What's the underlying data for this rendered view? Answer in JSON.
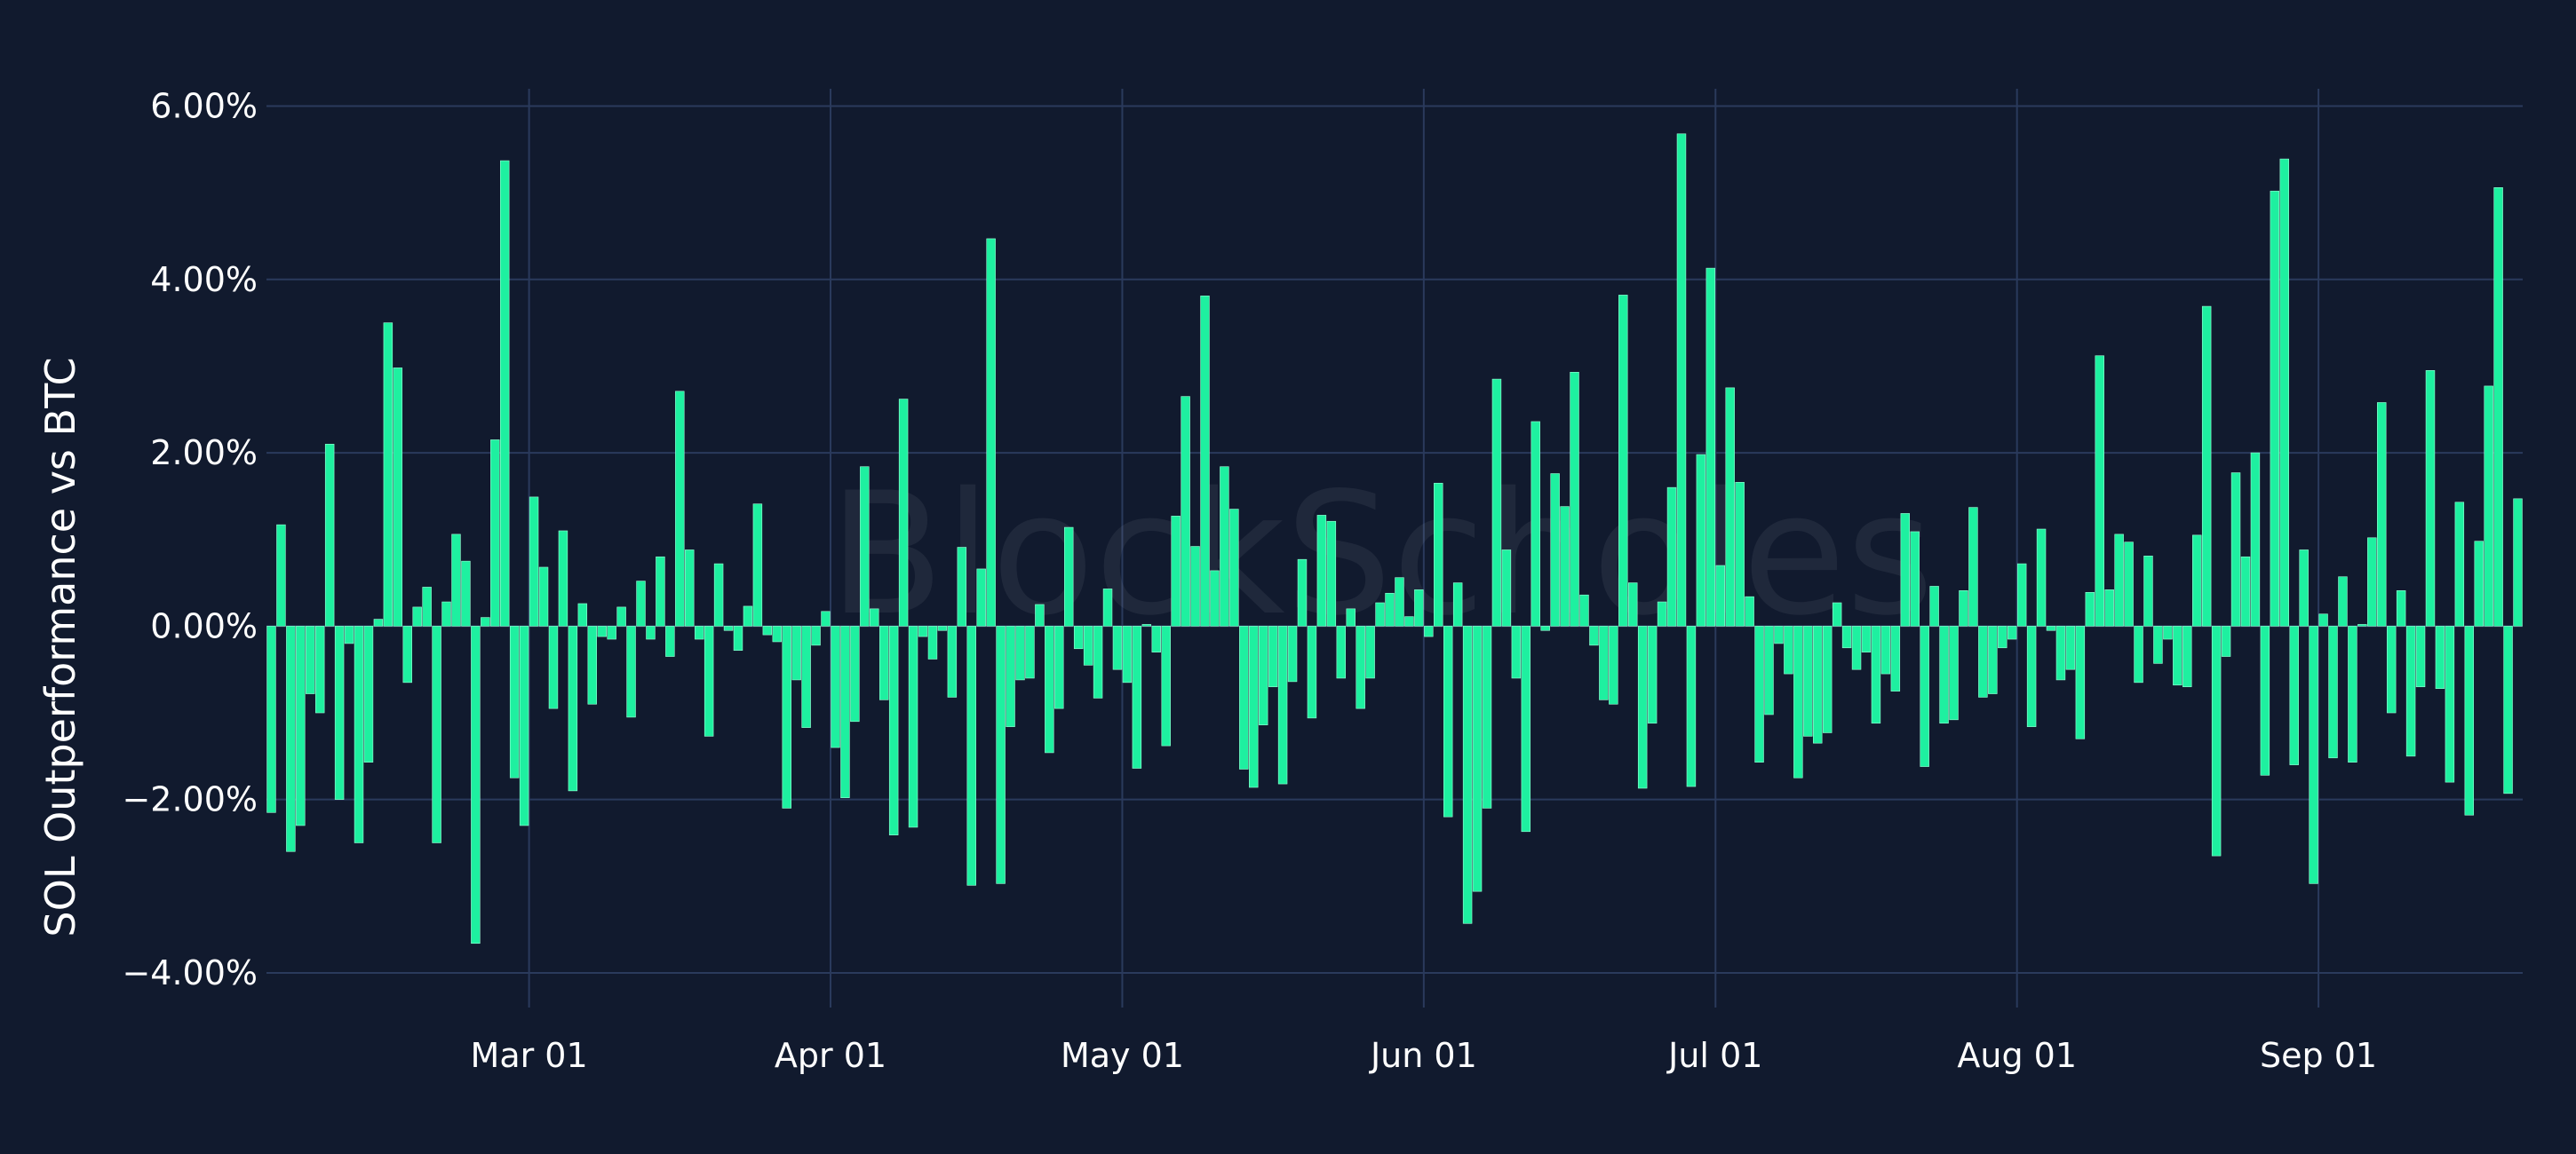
{
  "chart_data": {
    "type": "bar",
    "ylabel": "SOL Outperformance vs BTC",
    "y_unit": "%",
    "ylim": [
      -4.4,
      6.2
    ],
    "yticks": [
      6,
      4,
      2,
      0,
      -2,
      -4
    ],
    "ytick_labels": [
      "6.00%",
      "4.00%",
      "2.00%",
      "0.00%",
      "−2.00%",
      "−4.00%"
    ],
    "xlim": [
      "2024-02-03",
      "2024-09-22"
    ],
    "xticks": [
      "2024-03-01",
      "2024-04-01",
      "2024-05-01",
      "2024-06-01",
      "2024-07-01",
      "2024-08-01",
      "2024-09-01"
    ],
    "xtick_labels": [
      "Mar 01",
      "Apr 01",
      "May 01",
      "Jun 01",
      "Jul 01",
      "Aug 01",
      "Sep 01"
    ],
    "x_start": "2024-02-03",
    "values": [
      -2.15,
      1.17,
      -2.6,
      -2.3,
      -0.78,
      -1.0,
      2.1,
      -2.0,
      -0.2,
      -2.5,
      -1.57,
      0.08,
      3.5,
      2.98,
      -0.65,
      0.22,
      0.45,
      -2.5,
      0.28,
      1.06,
      0.75,
      -3.66,
      0.1,
      2.15,
      5.37,
      -1.75,
      -2.3,
      1.49,
      0.68,
      -0.95,
      1.1,
      -1.9,
      0.26,
      -0.9,
      -0.12,
      -0.15,
      0.22,
      -1.05,
      0.52,
      -0.15,
      0.8,
      -0.35,
      2.71,
      0.88,
      -0.15,
      -1.27,
      0.72,
      -0.05,
      -0.28,
      0.23,
      1.41,
      -0.1,
      -0.18,
      -2.1,
      -0.62,
      -1.17,
      -0.22,
      0.17,
      -1.4,
      -1.98,
      -1.1,
      1.84,
      0.2,
      -0.85,
      -2.41,
      2.62,
      -2.32,
      -0.12,
      -0.38,
      -0.05,
      -0.82,
      0.91,
      -2.99,
      0.66,
      4.47,
      -2.97,
      -1.16,
      -0.62,
      -0.6,
      0.25,
      -1.46,
      -0.95,
      1.14,
      -0.26,
      -0.45,
      -0.83,
      0.43,
      -0.5,
      -0.65,
      -1.64,
      0.02,
      -0.3,
      -1.38,
      1.27,
      2.65,
      0.92,
      3.81,
      0.64,
      1.84,
      1.35,
      -1.65,
      -1.86,
      -1.14,
      -0.7,
      -1.82,
      -0.64,
      0.77,
      -1.06,
      1.28,
      1.21,
      -0.6,
      0.2,
      -0.95,
      -0.6,
      0.27,
      0.38,
      0.56,
      0.11,
      0.42,
      -0.12,
      1.65,
      -2.2,
      0.5,
      -3.43,
      -3.06,
      -2.1,
      2.85,
      0.88,
      -0.6,
      -2.37,
      2.36,
      -0.05,
      1.76,
      1.38,
      2.93,
      0.36,
      -0.22,
      -0.85,
      -0.9,
      3.82,
      0.5,
      -1.87,
      -1.12,
      0.28,
      1.6,
      5.68,
      -1.85,
      1.98,
      4.13,
      0.7,
      2.75,
      1.66,
      0.34,
      -1.57,
      -1.02,
      -0.2,
      -0.55,
      -1.75,
      -1.27,
      -1.35,
      -1.23,
      0.27,
      -0.25,
      -0.5,
      -0.3,
      -1.12,
      -0.55,
      -0.75,
      1.3,
      1.09,
      -1.62,
      0.46,
      -1.12,
      -1.08,
      0.41,
      1.37,
      -0.82,
      -0.78,
      -0.25,
      -0.15,
      0.72,
      -1.16,
      1.12,
      -0.05,
      -0.62,
      -0.5,
      -1.3,
      0.39,
      3.12,
      0.42,
      1.06,
      0.97,
      -0.65,
      0.81,
      -0.43,
      -0.15,
      -0.68,
      -0.7,
      1.05,
      3.69,
      -2.65,
      -0.35,
      1.77,
      0.8,
      2.0,
      -1.72,
      5.02,
      5.39,
      -1.6,
      0.88,
      -2.97,
      0.14,
      -1.52,
      0.57,
      -1.57,
      0.02,
      1.02,
      2.58,
      -1.0,
      0.41,
      -1.5,
      -0.7,
      2.95,
      -0.72,
      -1.8,
      1.43,
      -2.18,
      0.98,
      2.77,
      5.06,
      -1.93,
      1.47
    ],
    "bar_color": "#1ef0a0",
    "bar_edge_color": "#9affd6",
    "watermark": "BlockScholes"
  },
  "colors": {
    "background": "#111a2e",
    "grid": "#2a3a5c",
    "text": "#ffffff"
  }
}
